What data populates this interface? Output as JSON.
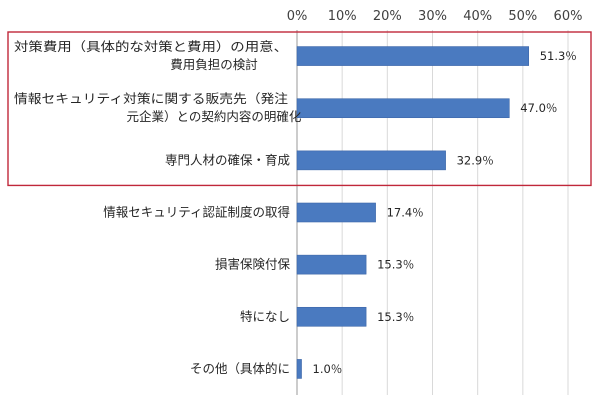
{
  "chart_data": {
    "type": "bar",
    "orientation": "horizontal",
    "title": "",
    "xlabel": "",
    "ylabel": "",
    "categories": [
      [
        "対策費用（具体的な対策と費用）の用意、",
        "費用負担の検討"
      ],
      [
        "情報セキュリティ対策に関する販売先（発注",
        "元企業）との契約内容の明確化"
      ],
      [
        "専門人材の確保・育成"
      ],
      [
        "情報セキュリティ認証制度の取得"
      ],
      [
        "損害保険付保"
      ],
      [
        "特になし"
      ],
      [
        "その他（具体的に"
      ]
    ],
    "values": [
      51.3,
      47.0,
      32.9,
      17.4,
      15.3,
      15.3,
      1.0
    ],
    "data_labels": [
      "51.3％",
      "47.0％",
      "32.9％",
      "17.4％",
      "15.3％",
      "15.3％",
      "1.0％"
    ],
    "xlim": [
      0,
      60
    ],
    "x_ticks": [
      "0%",
      "10%",
      "20%",
      "30%",
      "40%",
      "50%",
      "60%"
    ],
    "x_axis_position": "top",
    "grid": true,
    "legend": "none",
    "highlight_box": {
      "covers_categories": [
        0,
        1,
        2
      ],
      "color": "#c0283a"
    },
    "colors": {
      "bar": "#4a7ac0",
      "bar_edge": "#3d67a8",
      "grid": "#d9d9d9",
      "axis": "#9a9a9a"
    }
  }
}
